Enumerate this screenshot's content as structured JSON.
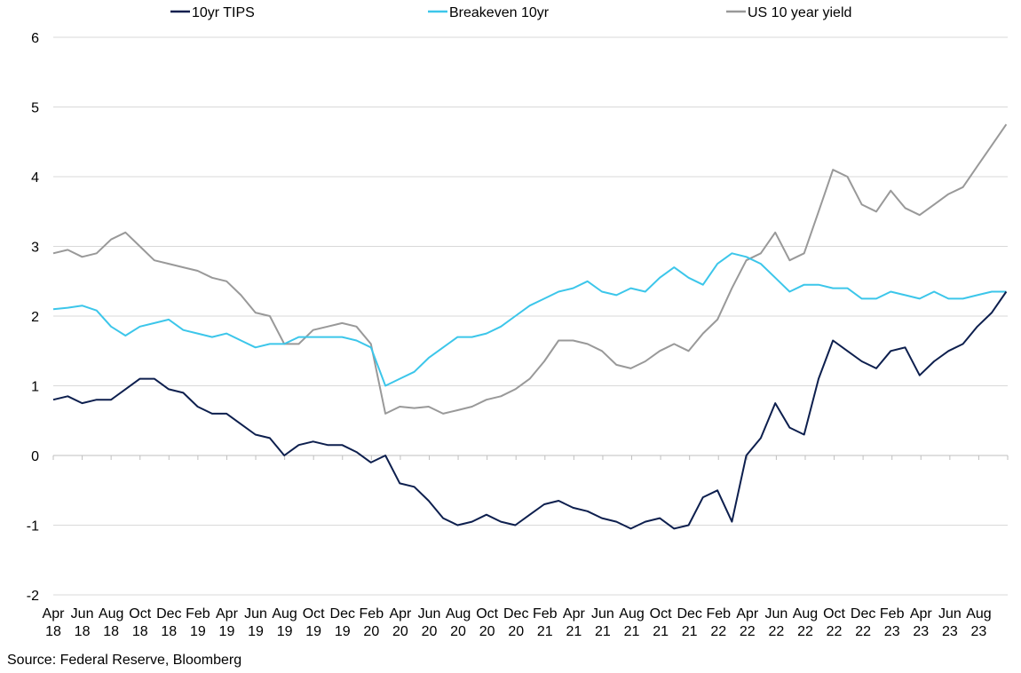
{
  "chart_data": {
    "type": "line",
    "title": "",
    "xlabel": "",
    "ylabel": "",
    "ylim": [
      -2,
      6
    ],
    "yticks": [
      -2,
      -1,
      0,
      1,
      2,
      3,
      4,
      5,
      6
    ],
    "grid": "horizontal",
    "legend_position": "top",
    "x_tick_labels": [
      [
        "Apr",
        "18"
      ],
      [
        "Jun",
        "18"
      ],
      [
        "Aug",
        "18"
      ],
      [
        "Oct",
        "18"
      ],
      [
        "Dec",
        "18"
      ],
      [
        "Feb",
        "19"
      ],
      [
        "Apr",
        "19"
      ],
      [
        "Jun",
        "19"
      ],
      [
        "Aug",
        "19"
      ],
      [
        "Oct",
        "19"
      ],
      [
        "Dec",
        "19"
      ],
      [
        "Feb",
        "20"
      ],
      [
        "Apr",
        "20"
      ],
      [
        "Jun",
        "20"
      ],
      [
        "Aug",
        "20"
      ],
      [
        "Oct",
        "20"
      ],
      [
        "Dec",
        "20"
      ],
      [
        "Feb",
        "21"
      ],
      [
        "Apr",
        "21"
      ],
      [
        "Jun",
        "21"
      ],
      [
        "Aug",
        "21"
      ],
      [
        "Oct",
        "21"
      ],
      [
        "Dec",
        "21"
      ],
      [
        "Feb",
        "22"
      ],
      [
        "Apr",
        "22"
      ],
      [
        "Jun",
        "22"
      ],
      [
        "Aug",
        "22"
      ],
      [
        "Oct",
        "22"
      ],
      [
        "Dec",
        "22"
      ],
      [
        "Feb",
        "23"
      ],
      [
        "Apr",
        "23"
      ],
      [
        "Jun",
        "23"
      ],
      [
        "Aug",
        "23"
      ]
    ],
    "x": [
      "2018-04",
      "2018-05",
      "2018-06",
      "2018-07",
      "2018-08",
      "2018-09",
      "2018-10",
      "2018-11",
      "2018-12",
      "2019-01",
      "2019-02",
      "2019-03",
      "2019-04",
      "2019-05",
      "2019-06",
      "2019-07",
      "2019-08",
      "2019-09",
      "2019-10",
      "2019-11",
      "2019-12",
      "2020-01",
      "2020-02",
      "2020-03",
      "2020-04",
      "2020-05",
      "2020-06",
      "2020-07",
      "2020-08",
      "2020-09",
      "2020-10",
      "2020-11",
      "2020-12",
      "2021-01",
      "2021-02",
      "2021-03",
      "2021-04",
      "2021-05",
      "2021-06",
      "2021-07",
      "2021-08",
      "2021-09",
      "2021-10",
      "2021-11",
      "2021-12",
      "2022-01",
      "2022-02",
      "2022-03",
      "2022-04",
      "2022-05",
      "2022-06",
      "2022-07",
      "2022-08",
      "2022-09",
      "2022-10",
      "2022-11",
      "2022-12",
      "2023-01",
      "2023-02",
      "2023-03",
      "2023-04",
      "2023-05",
      "2023-06",
      "2023-07",
      "2023-08",
      "2023-09",
      "2023-10"
    ],
    "series": [
      {
        "name": "10yr TIPS",
        "color": "#0d1f4e",
        "values": [
          0.8,
          0.85,
          0.75,
          0.8,
          0.8,
          0.95,
          1.1,
          1.1,
          0.95,
          0.9,
          0.7,
          0.6,
          0.6,
          0.45,
          0.3,
          0.25,
          0.0,
          0.15,
          0.2,
          0.15,
          0.15,
          0.05,
          -0.1,
          0.0,
          -0.4,
          -0.45,
          -0.65,
          -0.9,
          -1.0,
          -0.95,
          -0.85,
          -0.95,
          -1.0,
          -0.85,
          -0.7,
          -0.65,
          -0.75,
          -0.8,
          -0.9,
          -0.95,
          -1.05,
          -0.95,
          -0.9,
          -1.05,
          -1.0,
          -0.6,
          -0.5,
          -0.95,
          0.0,
          0.25,
          0.75,
          0.4,
          0.3,
          1.1,
          1.65,
          1.5,
          1.35,
          1.25,
          1.5,
          1.55,
          1.15,
          1.35,
          1.5,
          1.6,
          1.85,
          2.05,
          2.35
        ]
      },
      {
        "name": "Breakeven 10yr",
        "color": "#3cc6ea",
        "values": [
          2.1,
          2.12,
          2.15,
          2.08,
          1.85,
          1.72,
          1.85,
          1.9,
          1.95,
          1.8,
          1.75,
          1.7,
          1.75,
          1.65,
          1.55,
          1.6,
          1.6,
          1.7,
          1.7,
          1.7,
          1.7,
          1.65,
          1.55,
          1.0,
          1.1,
          1.2,
          1.4,
          1.55,
          1.7,
          1.7,
          1.75,
          1.85,
          2.0,
          2.15,
          2.25,
          2.35,
          2.4,
          2.5,
          2.35,
          2.3,
          2.4,
          2.35,
          2.55,
          2.7,
          2.55,
          2.45,
          2.75,
          2.9,
          2.85,
          2.75,
          2.55,
          2.35,
          2.45,
          2.45,
          2.4,
          2.4,
          2.25,
          2.25,
          2.35,
          2.3,
          2.25,
          2.35,
          2.25,
          2.25,
          2.3,
          2.35,
          2.35
        ]
      },
      {
        "name": "US 10 year yield",
        "color": "#999999",
        "values": [
          2.9,
          2.95,
          2.85,
          2.9,
          3.1,
          3.2,
          3.0,
          2.8,
          2.75,
          2.7,
          2.65,
          2.55,
          2.5,
          2.3,
          2.05,
          2.0,
          1.6,
          1.6,
          1.8,
          1.85,
          1.9,
          1.85,
          1.6,
          0.6,
          0.7,
          0.68,
          0.7,
          0.6,
          0.65,
          0.7,
          0.8,
          0.85,
          0.95,
          1.1,
          1.35,
          1.65,
          1.65,
          1.6,
          1.5,
          1.3,
          1.25,
          1.35,
          1.5,
          1.6,
          1.5,
          1.75,
          1.95,
          2.4,
          2.8,
          2.9,
          3.2,
          2.8,
          2.9,
          3.5,
          4.1,
          4.0,
          3.6,
          3.5,
          3.8,
          3.55,
          3.45,
          3.6,
          3.75,
          3.85,
          4.15,
          4.45,
          4.75
        ]
      }
    ]
  },
  "source_note": "Source: Federal Reserve, Bloomberg"
}
